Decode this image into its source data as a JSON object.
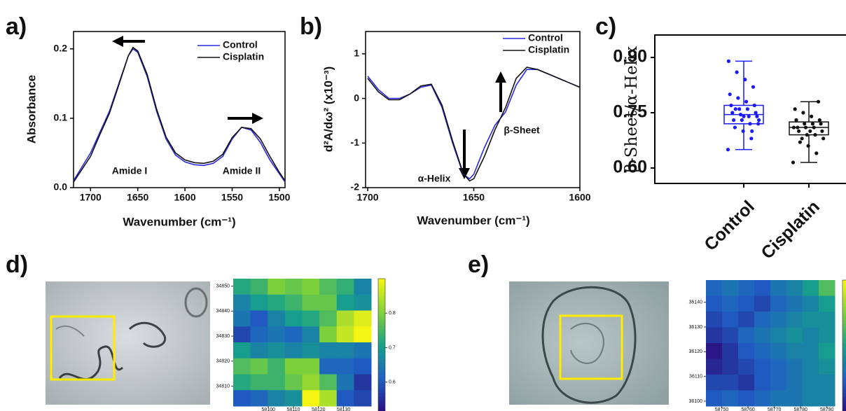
{
  "chart_data": [
    {
      "type": "line",
      "label": "a)",
      "xlabel": "Wavenumber (cm⁻¹)",
      "ylabel": "Absorbance",
      "annotations": [
        "Amide I",
        "Amide II"
      ],
      "xlim": [
        1718,
        1494
      ],
      "ylim": [
        0,
        0.225
      ],
      "xticks": [
        1700,
        1650,
        1600,
        1550,
        1500
      ],
      "yticks": [
        {
          "value": 0,
          "label": "0.0"
        },
        0.1,
        0.2
      ],
      "x": [
        1718,
        1700,
        1690,
        1680,
        1670,
        1660,
        1655,
        1650,
        1640,
        1630,
        1620,
        1610,
        1600,
        1590,
        1580,
        1570,
        1560,
        1550,
        1540,
        1530,
        1520,
        1510,
        1500,
        1494
      ],
      "series": [
        {
          "name": "Control",
          "color": "#2a2ae0",
          "values": [
            0.01,
            0.05,
            0.08,
            0.11,
            0.15,
            0.19,
            0.2,
            0.195,
            0.16,
            0.11,
            0.07,
            0.047,
            0.037,
            0.033,
            0.032,
            0.035,
            0.045,
            0.07,
            0.087,
            0.083,
            0.065,
            0.04,
            0.02,
            0.008
          ]
        },
        {
          "name": "Cisplatin",
          "color": "#111111",
          "values": [
            0.008,
            0.045,
            0.077,
            0.107,
            0.148,
            0.19,
            0.202,
            0.197,
            0.163,
            0.113,
            0.073,
            0.05,
            0.04,
            0.036,
            0.035,
            0.038,
            0.048,
            0.072,
            0.087,
            0.085,
            0.07,
            0.045,
            0.022,
            0.01
          ]
        }
      ]
    },
    {
      "type": "line",
      "label": "b)",
      "xlabel": "Wavenumber (cm⁻¹)",
      "ylabel": "d²A/dω² (x10⁻³)",
      "annotations": [
        "α-Helix",
        "β-Sheet"
      ],
      "xlim": [
        1701,
        1600
      ],
      "ylim": [
        -2,
        1.5
      ],
      "xticks": [
        1700,
        1650,
        1600
      ],
      "yticks": [
        -2,
        -1,
        0,
        1
      ],
      "x": [
        1700,
        1695,
        1690,
        1685,
        1680,
        1675,
        1670,
        1665,
        1660,
        1655,
        1652,
        1650,
        1645,
        1640,
        1635,
        1630,
        1625,
        1620,
        1615,
        1610,
        1605,
        1600
      ],
      "series": [
        {
          "name": "Control",
          "color": "#2a2ae0",
          "values": [
            0.5,
            0.2,
            0.0,
            0.0,
            0.1,
            0.25,
            0.3,
            -0.2,
            -1.0,
            -1.7,
            -1.8,
            -1.7,
            -1.1,
            -0.6,
            -0.3,
            0.3,
            0.65,
            0.65,
            0.55,
            0.45,
            0.35,
            0.25
          ]
        },
        {
          "name": "Cisplatin",
          "color": "#111111",
          "values": [
            0.45,
            0.15,
            -0.03,
            -0.03,
            0.1,
            0.28,
            0.32,
            -0.15,
            -0.95,
            -1.68,
            -1.85,
            -1.8,
            -1.3,
            -0.7,
            -0.2,
            0.45,
            0.7,
            0.65,
            0.55,
            0.45,
            0.35,
            0.25
          ]
        }
      ]
    },
    {
      "type": "box",
      "label": "c)",
      "ylabel": "β-Sheet/α-Helix",
      "ylim": [
        0.558,
        0.961
      ],
      "yticks": [
        {
          "value": 0.6,
          "label": "0.60"
        },
        {
          "value": 0.75,
          "label": "0.75"
        },
        {
          "value": 0.9,
          "label": "0.90"
        }
      ],
      "categories": [
        "Control",
        "Cisplatin"
      ],
      "colors": [
        "#1a1aff",
        "#111111"
      ],
      "boxes": [
        {
          "min": 0.65,
          "q1": 0.72,
          "median": 0.745,
          "q3": 0.77,
          "max": 0.89
        },
        {
          "min": 0.615,
          "q1": 0.69,
          "median": 0.71,
          "q3": 0.725,
          "max": 0.78
        }
      ],
      "points": [
        [
          0.65,
          0.68,
          0.7,
          0.71,
          0.72,
          0.72,
          0.73,
          0.73,
          0.74,
          0.74,
          0.745,
          0.75,
          0.75,
          0.76,
          0.76,
          0.77,
          0.77,
          0.78,
          0.79,
          0.8,
          0.82,
          0.84,
          0.86,
          0.89,
          0.7,
          0.74,
          0.76,
          0.73
        ],
        [
          0.615,
          0.64,
          0.66,
          0.67,
          0.68,
          0.69,
          0.69,
          0.7,
          0.7,
          0.71,
          0.71,
          0.71,
          0.72,
          0.72,
          0.72,
          0.73,
          0.73,
          0.74,
          0.75,
          0.76,
          0.78,
          0.7,
          0.68,
          0.71
        ]
      ]
    },
    {
      "type": "heatmap",
      "label": "d)",
      "xlim": [
        58086,
        58141
      ],
      "ylim": [
        34853,
        34802
      ],
      "xticks": [
        58100,
        58110,
        58120,
        58130
      ],
      "yticks": [
        34850,
        34840,
        34830,
        34820,
        34810
      ],
      "zlim": [
        0.51,
        0.9
      ],
      "zticks": [
        0.6,
        0.7,
        0.8
      ],
      "colors": [
        "#2a0c7d",
        "#1f5fc4",
        "#16a08a",
        "#7fd13a",
        "#f5f514"
      ],
      "values": [
        [
          0.72,
          0.74,
          0.8,
          0.78,
          0.8,
          0.76,
          0.73,
          0.66
        ],
        [
          0.66,
          0.7,
          0.72,
          0.74,
          0.78,
          0.78,
          0.7,
          0.68
        ],
        [
          0.64,
          0.6,
          0.66,
          0.7,
          0.72,
          0.76,
          0.84,
          0.88
        ],
        [
          0.58,
          0.62,
          0.64,
          0.62,
          0.66,
          0.8,
          0.86,
          0.9
        ],
        [
          0.7,
          0.66,
          0.68,
          0.66,
          0.68,
          0.66,
          0.66,
          0.64
        ],
        [
          0.76,
          0.78,
          0.74,
          0.8,
          0.8,
          0.62,
          0.62,
          0.6
        ],
        [
          0.72,
          0.74,
          0.74,
          0.78,
          0.82,
          0.76,
          0.64,
          0.56
        ],
        [
          0.6,
          0.62,
          0.66,
          0.68,
          0.9,
          0.84,
          0.6,
          0.58
        ]
      ]
    },
    {
      "type": "heatmap",
      "label": "e)",
      "xlim": [
        58744,
        58793
      ],
      "ylim": [
        36149,
        36098
      ],
      "xticks": [
        58750,
        58760,
        58770,
        58780,
        58790
      ],
      "yticks": [
        36140,
        36130,
        36120,
        36110,
        36100
      ],
      "zlim": [
        0.51,
        0.9
      ],
      "zticks": [],
      "colors": [
        "#2a0c7d",
        "#1f5fc4",
        "#16a08a",
        "#7fd13a",
        "#f5f514"
      ],
      "values": [
        [
          0.62,
          0.64,
          0.62,
          0.6,
          0.64,
          0.66,
          0.7,
          0.76
        ],
        [
          0.6,
          0.62,
          0.6,
          0.58,
          0.62,
          0.64,
          0.66,
          0.7
        ],
        [
          0.58,
          0.6,
          0.58,
          0.62,
          0.64,
          0.66,
          0.68,
          0.68
        ],
        [
          0.56,
          0.58,
          0.62,
          0.64,
          0.66,
          0.68,
          0.66,
          0.68
        ],
        [
          0.52,
          0.56,
          0.6,
          0.62,
          0.64,
          0.66,
          0.66,
          0.7
        ],
        [
          0.54,
          0.56,
          0.58,
          0.6,
          0.62,
          0.64,
          0.66,
          0.68
        ],
        [
          0.58,
          0.58,
          0.56,
          0.6,
          0.62,
          0.64,
          0.66,
          0.66
        ],
        [
          0.6,
          0.62,
          0.6,
          0.62,
          0.64,
          0.64,
          0.66,
          0.66
        ]
      ]
    }
  ]
}
